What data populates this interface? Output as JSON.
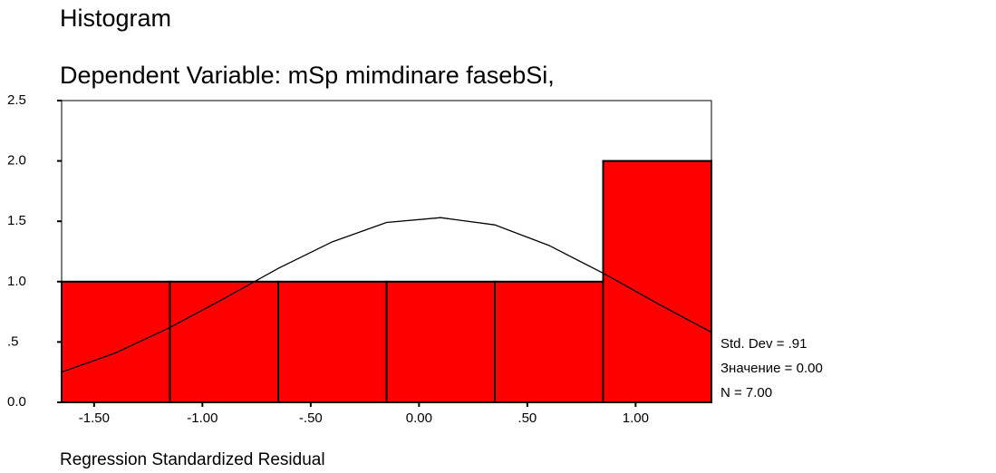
{
  "chart_data": {
    "type": "histogram",
    "title": "Histogram",
    "subtitle": "Dependent Variable: mSp mimdinare fasebSi,",
    "x_label": "Regression Standardized Residual",
    "bins": [
      -1.65,
      -1.15,
      -0.65,
      -0.15,
      0.35,
      0.85,
      1.35
    ],
    "values": [
      1,
      1,
      1,
      1,
      1,
      2
    ],
    "color": "#ff0000",
    "curve": {
      "color": "#000000",
      "x": [
        -1.65,
        -1.4,
        -1.15,
        -0.9,
        -0.65,
        -0.4,
        -0.15,
        0.1,
        0.35,
        0.6,
        0.85,
        1.1,
        1.35
      ],
      "y": [
        0.25,
        0.41,
        0.62,
        0.86,
        1.11,
        1.33,
        1.49,
        1.53,
        1.47,
        1.3,
        1.07,
        0.82,
        0.58
      ]
    },
    "xlim": [
      -1.65,
      1.35
    ],
    "xticks": [
      {
        "value": -1.5,
        "label": "-1.50"
      },
      {
        "value": -1.0,
        "label": "-1.00"
      },
      {
        "value": -0.5,
        "label": "-.50"
      },
      {
        "value": 0,
        "label": "0.00"
      },
      {
        "value": 0.5,
        "label": ".50"
      },
      {
        "value": 1.0,
        "label": "1.00"
      }
    ],
    "ylim": [
      0,
      2.5
    ],
    "yticks": [
      {
        "value": 0,
        "label": "0.0"
      },
      {
        "value": 0.5,
        "label": ".5"
      },
      {
        "value": 1,
        "label": "1.0"
      },
      {
        "value": 1.5,
        "label": "1.5"
      },
      {
        "value": 2,
        "label": "2.0"
      },
      {
        "value": 2.5,
        "label": "2.5"
      }
    ],
    "annotations": [
      "Std. Dev = .91",
      "Значение = 0.00",
      "N = 7.00"
    ]
  }
}
